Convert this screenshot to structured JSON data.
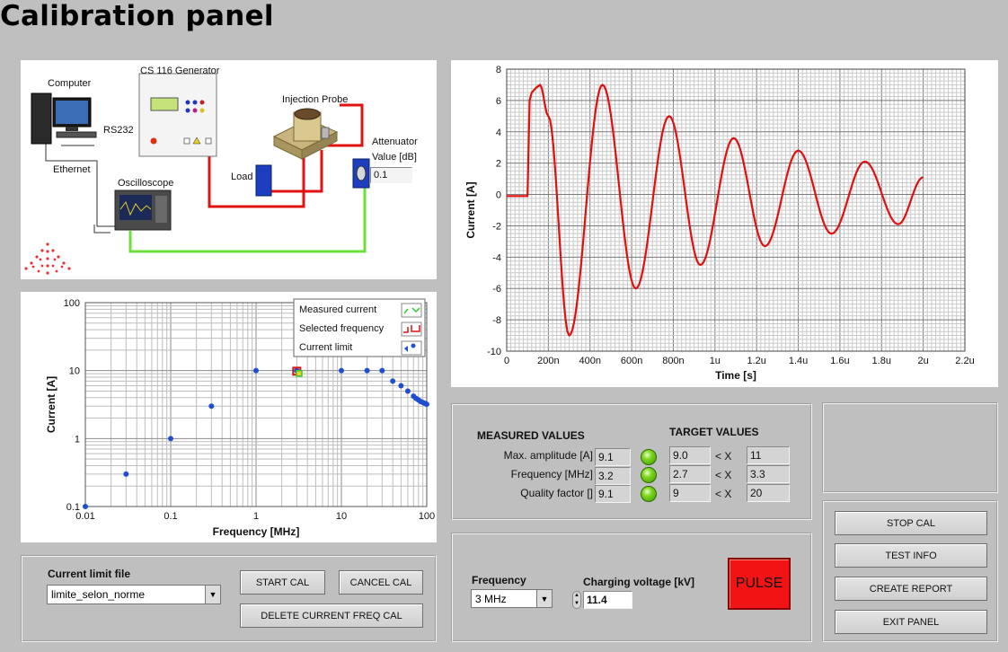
{
  "title": "Calibration panel",
  "diagram": {
    "computer": "Computer",
    "generator": "CS 116 Generator",
    "probe": "Injection Probe",
    "rs232": "RS232",
    "ethernet": "Ethernet",
    "oscilloscope": "Oscilloscope",
    "load": "Load",
    "attenuator": "Attenuator",
    "attenuator_value_label": "Value [dB]",
    "attenuator_value": "0.1"
  },
  "chart_data": [
    {
      "type": "scatter",
      "xlabel": "Frequency [MHz]",
      "ylabel": "Current [A]",
      "x_scale": "log",
      "y_scale": "log",
      "xlim": [
        0.01,
        100
      ],
      "ylim": [
        0.1,
        100
      ],
      "x_ticks": [
        "0.01",
        "0.1",
        "1",
        "10",
        "100"
      ],
      "y_ticks": [
        "0.1",
        "1",
        "10",
        "100"
      ],
      "legend": [
        "Measured current",
        "Selected frequency",
        "Current limit"
      ],
      "legend_position": "top-right",
      "colors": {
        "measured": "#2ecc2e",
        "selected": "#e01010",
        "limit": "#1f4fd0"
      },
      "series": [
        {
          "name": "Current limit",
          "x": [
            0.01,
            0.03,
            0.1,
            0.3,
            1,
            3,
            10,
            20,
            30,
            40,
            50,
            60,
            70,
            75,
            80,
            85,
            90,
            95,
            100
          ],
          "y": [
            0.1,
            0.3,
            1,
            3,
            10,
            10,
            10,
            10,
            10,
            7,
            6,
            5,
            4.2,
            3.9,
            3.7,
            3.5,
            3.4,
            3.3,
            3.2
          ]
        },
        {
          "name": "Measured current",
          "x": [
            3.2
          ],
          "y": [
            9.1
          ]
        },
        {
          "name": "Selected frequency",
          "x": [
            3
          ],
          "y": [
            9.5
          ]
        }
      ]
    },
    {
      "type": "line",
      "xlabel": "Time [s]",
      "ylabel": "Current [A]",
      "xlim": [
        0,
        2.2
      ],
      "ylim": [
        -10,
        8
      ],
      "x_ticks": [
        "0",
        "200n",
        "400n",
        "600n",
        "800n",
        "1u",
        "1.2u",
        "1.4u",
        "1.6u",
        "1.8u",
        "2u",
        "2.2u"
      ],
      "y_ticks": [
        "-10",
        "-8",
        "-6",
        "-4",
        "-2",
        "0",
        "2",
        "4",
        "6",
        "8"
      ],
      "color": "#e01010",
      "series": [
        {
          "x_unit": "us",
          "x": [
            0,
            0.05,
            0.1,
            0.11,
            0.12,
            0.14,
            0.16,
            0.2,
            0.3,
            0.46,
            0.62,
            0.78,
            0.93,
            1.09,
            1.24,
            1.4,
            1.56,
            1.72,
            1.88,
            2.0
          ],
          "y": [
            -0.1,
            -0.1,
            -0.1,
            6.0,
            6.5,
            6.8,
            7.0,
            5.0,
            -9.0,
            7.0,
            -6.0,
            5.0,
            -4.5,
            3.6,
            -3.3,
            2.8,
            -2.5,
            2.1,
            -1.9,
            1.1
          ]
        }
      ]
    }
  ],
  "measured": {
    "header": "MEASURED VALUES",
    "target_header": "TARGET VALUES",
    "rows": [
      {
        "label": "Max. amplitude [A]",
        "value": "9.1",
        "min": "9.0",
        "op": "< X",
        "max": "11"
      },
      {
        "label": "Frequency [MHz]",
        "value": "3.2",
        "min": "2.7",
        "op": "< X",
        "max": "3.3"
      },
      {
        "label": "Quality factor []",
        "value": "9.1",
        "min": "9",
        "op": "< X",
        "max": "20"
      }
    ]
  },
  "limit_file": {
    "label": "Current limit file",
    "value": "limite_selon_norme",
    "start": "START CAL",
    "cancel": "CANCEL CAL",
    "delete": "DELETE CURRENT FREQ CAL"
  },
  "controls": {
    "frequency_label": "Frequency",
    "frequency_value": "3 MHz",
    "voltage_label": "Charging voltage [kV]",
    "voltage_value": "11.4",
    "pulse": "PULSE"
  },
  "side_buttons": {
    "stop": "STOP CAL",
    "test": "TEST INFO",
    "report": "CREATE REPORT",
    "exit": "EXIT PANEL"
  }
}
